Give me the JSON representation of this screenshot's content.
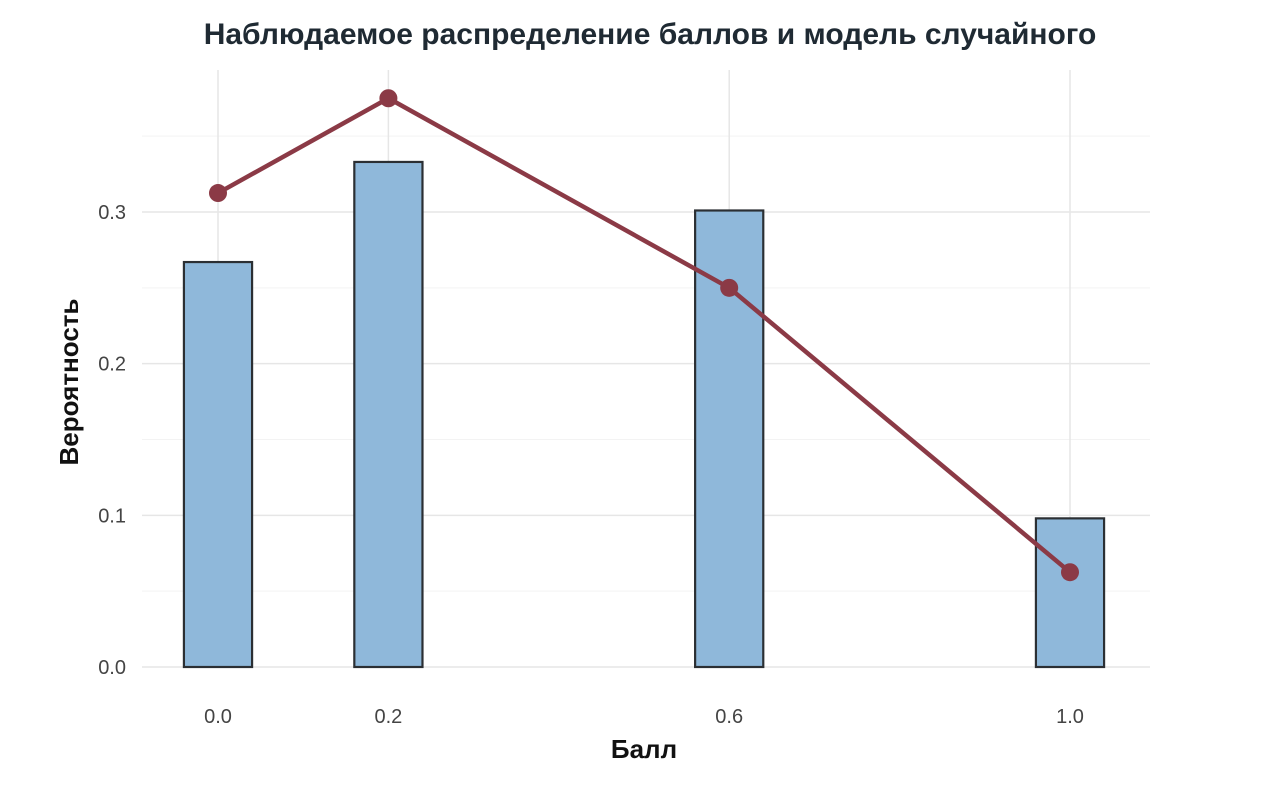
{
  "chart_data": {
    "type": "bar",
    "title": "Наблюдаемое распределение баллов и модель случайного",
    "xlabel": "Балл",
    "ylabel": "Вероятность",
    "x_ticks": [
      "0.0",
      "0.2",
      "0.6",
      "1.0"
    ],
    "y_ticks": [
      "0.0",
      "0.1",
      "0.2",
      "0.3"
    ],
    "xlim": [
      -0.05,
      1.05
    ],
    "ylim": [
      0,
      0.39
    ],
    "grid": true,
    "series": [
      {
        "type": "bar",
        "x": [
          0.0,
          0.2,
          0.6,
          1.0
        ],
        "values": [
          0.267,
          0.333,
          0.301,
          0.098
        ],
        "color": "#8fb8da",
        "edge_color": "#2b2f33"
      },
      {
        "type": "line",
        "x": [
          0.0,
          0.2,
          0.6,
          1.0
        ],
        "values": [
          0.3125,
          0.375,
          0.25,
          0.0625
        ],
        "color": "#8b3a46"
      }
    ]
  }
}
